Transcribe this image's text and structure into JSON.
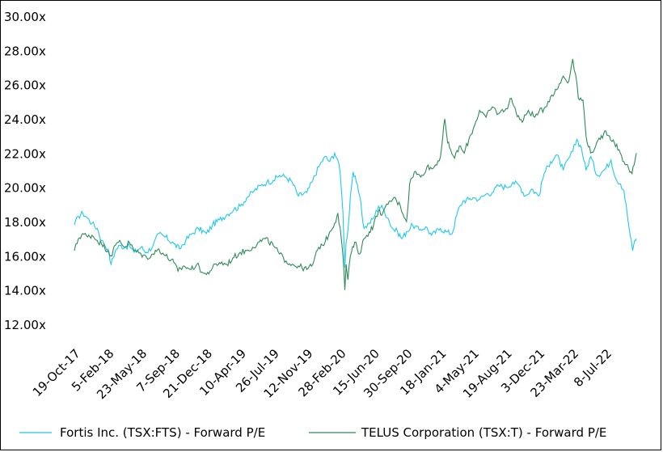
{
  "chart_data": {
    "type": "line",
    "title": "",
    "xlabel": "",
    "ylabel": "",
    "ylim": [
      12,
      30
    ],
    "y_ticks": [
      "12.00x",
      "14.00x",
      "16.00x",
      "18.00x",
      "20.00x",
      "22.00x",
      "24.00x",
      "26.00x",
      "28.00x",
      "30.00x"
    ],
    "y_tick_values": [
      12,
      14,
      16,
      18,
      20,
      22,
      24,
      26,
      28,
      30
    ],
    "x_range": [
      "2017-10-19",
      "2022-10-15"
    ],
    "x_ticks": [
      "19-Oct-17",
      "5-Feb-18",
      "23-May-18",
      "7-Sep-18",
      "21-Dec-18",
      "10-Apr-19",
      "26-Jul-19",
      "12-Nov-19",
      "28-Feb-20",
      "15-Jun-20",
      "30-Sep-20",
      "18-Jan-21",
      "4-May-21",
      "19-Aug-21",
      "3-Dec-21",
      "23-Mar-22",
      "8-Jul-22"
    ],
    "x_tick_dates": [
      "2017-10-19",
      "2018-02-05",
      "2018-05-23",
      "2018-09-07",
      "2018-12-21",
      "2019-04-10",
      "2019-07-26",
      "2019-11-12",
      "2020-02-28",
      "2020-06-15",
      "2020-09-30",
      "2021-01-18",
      "2021-05-04",
      "2021-08-19",
      "2021-12-03",
      "2022-03-23",
      "2022-07-08"
    ],
    "grid": false,
    "legend_position": "bottom",
    "series": [
      {
        "name": "Fortis Inc. (TSX:FTS) - Forward P/E",
        "color": "#1ec8ee",
        "points": [
          [
            "2017-10-19",
            17.8
          ],
          [
            "2017-11-01",
            18.3
          ],
          [
            "2017-11-15",
            18.5
          ],
          [
            "2017-12-01",
            18.2
          ],
          [
            "2017-12-15",
            17.9
          ],
          [
            "2018-01-01",
            17.6
          ],
          [
            "2018-01-15",
            16.9
          ],
          [
            "2018-02-05",
            16.4
          ],
          [
            "2018-02-15",
            15.5
          ],
          [
            "2018-03-01",
            16.3
          ],
          [
            "2018-03-15",
            16.6
          ],
          [
            "2018-04-01",
            16.5
          ],
          [
            "2018-04-15",
            16.6
          ],
          [
            "2018-05-01",
            16.2
          ],
          [
            "2018-05-23",
            16.5
          ],
          [
            "2018-06-10",
            16.2
          ],
          [
            "2018-07-01",
            16.6
          ],
          [
            "2018-07-20",
            17.3
          ],
          [
            "2018-08-10",
            17.1
          ],
          [
            "2018-09-07",
            16.7
          ],
          [
            "2018-09-25",
            16.4
          ],
          [
            "2018-10-15",
            16.9
          ],
          [
            "2018-11-05",
            17.3
          ],
          [
            "2018-11-25",
            17.6
          ],
          [
            "2018-12-21",
            17.3
          ],
          [
            "2019-01-10",
            17.8
          ],
          [
            "2019-02-01",
            18.1
          ],
          [
            "2019-02-25",
            18.4
          ],
          [
            "2019-03-20",
            18.7
          ],
          [
            "2019-04-10",
            18.9
          ],
          [
            "2019-05-01",
            19.4
          ],
          [
            "2019-05-25",
            19.8
          ],
          [
            "2019-06-15",
            20.1
          ],
          [
            "2019-07-05",
            20.3
          ],
          [
            "2019-07-26",
            20.4
          ],
          [
            "2019-08-15",
            20.7
          ],
          [
            "2019-09-05",
            20.6
          ],
          [
            "2019-09-25",
            20.3
          ],
          [
            "2019-10-15",
            19.5
          ],
          [
            "2019-11-12",
            19.7
          ],
          [
            "2019-12-01",
            20.4
          ],
          [
            "2019-12-20",
            21.2
          ],
          [
            "2020-01-10",
            21.8
          ],
          [
            "2020-01-25",
            21.5
          ],
          [
            "2020-02-10",
            22.0
          ],
          [
            "2020-02-20",
            21.6
          ],
          [
            "2020-02-28",
            20.8
          ],
          [
            "2020-03-08",
            18.5
          ],
          [
            "2020-03-14",
            15.3
          ],
          [
            "2020-03-18",
            16.8
          ],
          [
            "2020-03-24",
            17.5
          ],
          [
            "2020-04-01",
            19.5
          ],
          [
            "2020-04-10",
            20.9
          ],
          [
            "2020-04-20",
            20.3
          ],
          [
            "2020-05-01",
            19.5
          ],
          [
            "2020-05-15",
            17.6
          ],
          [
            "2020-06-01",
            17.9
          ],
          [
            "2020-06-15",
            18.2
          ],
          [
            "2020-07-01",
            18.9
          ],
          [
            "2020-07-15",
            18.8
          ],
          [
            "2020-08-01",
            18.2
          ],
          [
            "2020-08-15",
            17.6
          ],
          [
            "2020-09-01",
            17.4
          ],
          [
            "2020-09-15",
            17.0
          ],
          [
            "2020-09-30",
            17.4
          ],
          [
            "2020-10-20",
            17.8
          ],
          [
            "2020-11-10",
            17.5
          ],
          [
            "2020-12-01",
            17.7
          ],
          [
            "2020-12-20",
            17.2
          ],
          [
            "2021-01-18",
            17.6
          ],
          [
            "2021-02-05",
            17.4
          ],
          [
            "2021-02-25",
            17.3
          ],
          [
            "2021-03-15",
            18.6
          ],
          [
            "2021-04-01",
            19.2
          ],
          [
            "2021-04-20",
            19.3
          ],
          [
            "2021-05-04",
            19.4
          ],
          [
            "2021-05-25",
            19.3
          ],
          [
            "2021-06-15",
            19.6
          ],
          [
            "2021-07-05",
            19.7
          ],
          [
            "2021-07-25",
            20.1
          ],
          [
            "2021-08-19",
            20.0
          ],
          [
            "2021-09-10",
            20.3
          ],
          [
            "2021-10-01",
            20.1
          ],
          [
            "2021-10-20",
            19.5
          ],
          [
            "2021-11-10",
            19.9
          ],
          [
            "2021-12-03",
            19.5
          ],
          [
            "2021-12-20",
            20.8
          ],
          [
            "2022-01-10",
            21.5
          ],
          [
            "2022-01-30",
            21.9
          ],
          [
            "2022-02-20",
            21.0
          ],
          [
            "2022-03-10",
            21.7
          ],
          [
            "2022-03-23",
            22.1
          ],
          [
            "2022-04-05",
            22.8
          ],
          [
            "2022-04-20",
            22.3
          ],
          [
            "2022-05-05",
            21.0
          ],
          [
            "2022-05-20",
            21.8
          ],
          [
            "2022-06-10",
            20.7
          ],
          [
            "2022-07-08",
            21.1
          ],
          [
            "2022-07-25",
            21.6
          ],
          [
            "2022-08-10",
            20.5
          ],
          [
            "2022-08-25",
            20.2
          ],
          [
            "2022-09-05",
            19.8
          ],
          [
            "2022-09-15",
            18.5
          ],
          [
            "2022-09-25",
            17.2
          ],
          [
            "2022-10-03",
            16.3
          ],
          [
            "2022-10-10",
            16.9
          ],
          [
            "2022-10-15",
            17.0
          ]
        ]
      },
      {
        "name": "TELUS Corporation (TSX:T) - Forward P/E",
        "color": "#2e8b57",
        "points": [
          [
            "2017-10-19",
            16.3
          ],
          [
            "2017-11-01",
            17.0
          ],
          [
            "2017-11-15",
            17.3
          ],
          [
            "2017-12-01",
            17.1
          ],
          [
            "2017-12-15",
            17.2
          ],
          [
            "2018-01-01",
            16.9
          ],
          [
            "2018-01-15",
            16.7
          ],
          [
            "2018-02-05",
            16.3
          ],
          [
            "2018-02-15",
            16.0
          ],
          [
            "2018-03-01",
            16.6
          ],
          [
            "2018-03-15",
            16.9
          ],
          [
            "2018-04-01",
            16.5
          ],
          [
            "2018-04-15",
            16.8
          ],
          [
            "2018-05-01",
            16.3
          ],
          [
            "2018-05-23",
            16.1
          ],
          [
            "2018-06-10",
            15.9
          ],
          [
            "2018-07-01",
            16.1
          ],
          [
            "2018-07-20",
            16.4
          ],
          [
            "2018-08-10",
            16.0
          ],
          [
            "2018-09-07",
            15.6
          ],
          [
            "2018-09-20",
            15.1
          ],
          [
            "2018-10-10",
            15.4
          ],
          [
            "2018-11-01",
            15.2
          ],
          [
            "2018-11-20",
            15.5
          ],
          [
            "2018-12-10",
            15.0
          ],
          [
            "2018-12-21",
            14.9
          ],
          [
            "2019-01-10",
            15.3
          ],
          [
            "2019-02-01",
            15.6
          ],
          [
            "2019-02-25",
            15.5
          ],
          [
            "2019-03-20",
            15.9
          ],
          [
            "2019-04-10",
            16.2
          ],
          [
            "2019-05-01",
            16.3
          ],
          [
            "2019-05-20",
            16.5
          ],
          [
            "2019-06-10",
            16.8
          ],
          [
            "2019-06-30",
            17.0
          ],
          [
            "2019-07-26",
            16.6
          ],
          [
            "2019-08-15",
            16.1
          ],
          [
            "2019-09-05",
            15.7
          ],
          [
            "2019-09-25",
            15.5
          ],
          [
            "2019-10-15",
            15.4
          ],
          [
            "2019-11-12",
            15.2
          ],
          [
            "2019-12-01",
            15.5
          ],
          [
            "2019-12-20",
            16.5
          ],
          [
            "2020-01-10",
            16.8
          ],
          [
            "2020-01-25",
            17.4
          ],
          [
            "2020-02-10",
            17.9
          ],
          [
            "2020-02-20",
            18.5
          ],
          [
            "2020-02-28",
            17.6
          ],
          [
            "2020-03-08",
            16.0
          ],
          [
            "2020-03-14",
            14.0
          ],
          [
            "2020-03-18",
            15.5
          ],
          [
            "2020-03-24",
            14.6
          ],
          [
            "2020-04-01",
            16.0
          ],
          [
            "2020-04-15",
            16.8
          ],
          [
            "2020-05-01",
            16.1
          ],
          [
            "2020-05-15",
            17.0
          ],
          [
            "2020-06-01",
            17.4
          ],
          [
            "2020-06-15",
            17.8
          ],
          [
            "2020-07-01",
            18.6
          ],
          [
            "2020-07-15",
            18.5
          ],
          [
            "2020-08-01",
            19.0
          ],
          [
            "2020-08-20",
            19.4
          ],
          [
            "2020-09-10",
            18.9
          ],
          [
            "2020-09-30",
            18.0
          ],
          [
            "2020-10-10",
            20.2
          ],
          [
            "2020-10-25",
            20.9
          ],
          [
            "2020-11-15",
            20.6
          ],
          [
            "2020-12-05",
            21.2
          ],
          [
            "2020-12-25",
            21.1
          ],
          [
            "2021-01-18",
            21.8
          ],
          [
            "2021-02-01",
            24.0
          ],
          [
            "2021-02-10",
            22.6
          ],
          [
            "2021-02-20",
            22.2
          ],
          [
            "2021-03-05",
            21.7
          ],
          [
            "2021-03-20",
            22.4
          ],
          [
            "2021-04-05",
            22.0
          ],
          [
            "2021-04-20",
            22.8
          ],
          [
            "2021-05-04",
            23.4
          ],
          [
            "2021-05-25",
            24.5
          ],
          [
            "2021-06-15",
            24.1
          ],
          [
            "2021-07-05",
            24.7
          ],
          [
            "2021-07-25",
            24.3
          ],
          [
            "2021-08-19",
            24.6
          ],
          [
            "2021-09-05",
            25.2
          ],
          [
            "2021-09-20",
            24.4
          ],
          [
            "2021-10-10",
            23.8
          ],
          [
            "2021-10-30",
            24.5
          ],
          [
            "2021-11-20",
            24.1
          ],
          [
            "2021-12-03",
            24.4
          ],
          [
            "2021-12-20",
            24.6
          ],
          [
            "2022-01-10",
            25.3
          ],
          [
            "2022-01-30",
            25.7
          ],
          [
            "2022-02-20",
            26.5
          ],
          [
            "2022-03-10",
            26.2
          ],
          [
            "2022-03-23",
            27.5
          ],
          [
            "2022-04-01",
            26.6
          ],
          [
            "2022-04-10",
            25.2
          ],
          [
            "2022-04-25",
            25.1
          ],
          [
            "2022-05-05",
            23.0
          ],
          [
            "2022-05-20",
            22.0
          ],
          [
            "2022-06-05",
            22.4
          ],
          [
            "2022-06-20",
            22.8
          ],
          [
            "2022-07-08",
            23.3
          ],
          [
            "2022-07-20",
            23.0
          ],
          [
            "2022-08-05",
            22.6
          ],
          [
            "2022-08-20",
            22.2
          ],
          [
            "2022-09-05",
            21.5
          ],
          [
            "2022-09-20",
            21.1
          ],
          [
            "2022-10-01",
            20.8
          ],
          [
            "2022-10-08",
            21.3
          ],
          [
            "2022-10-15",
            22.0
          ]
        ]
      }
    ]
  }
}
